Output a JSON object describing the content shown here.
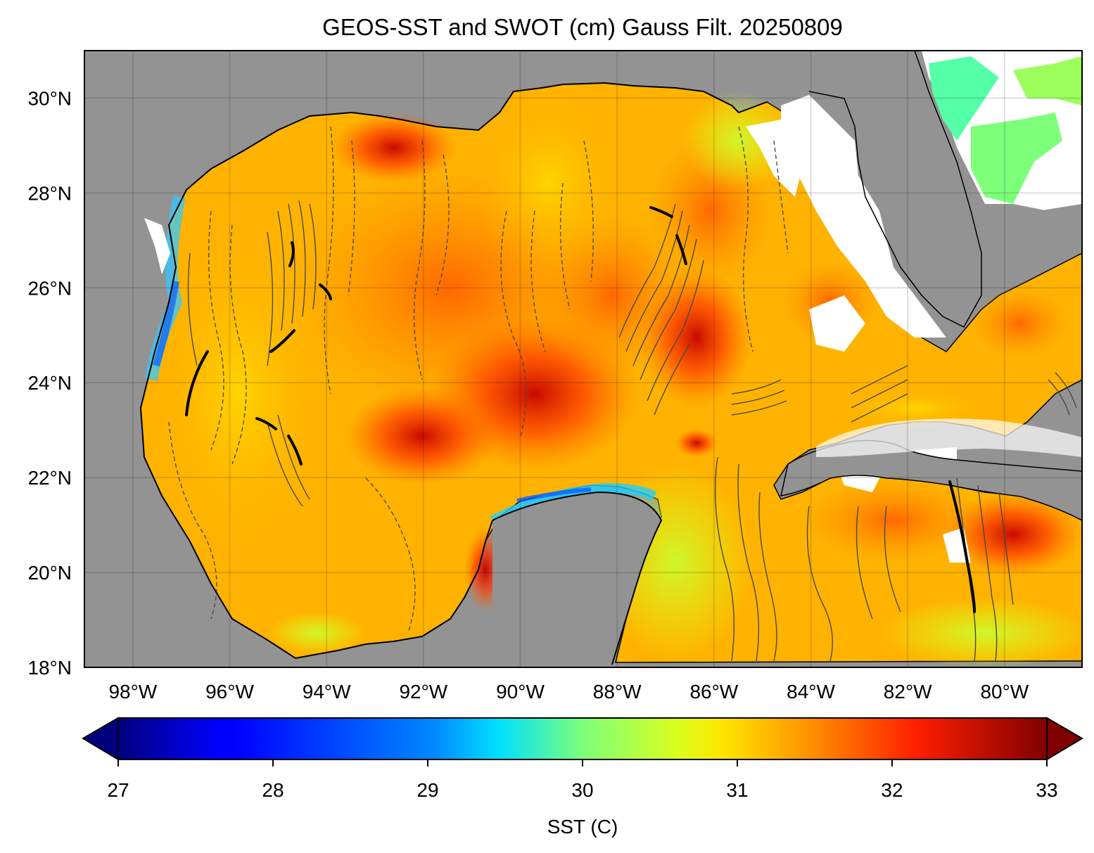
{
  "figure": {
    "title": "GEOS-SST  and SWOT (cm) Gauss Filt. 20250809"
  },
  "map": {
    "lon_range": [
      -99,
      -78.4
    ],
    "lat_range": [
      18,
      31
    ],
    "lat_ticks": [
      {
        "value": 30,
        "label": "30°N"
      },
      {
        "value": 28,
        "label": "28°N"
      },
      {
        "value": 26,
        "label": "26°N"
      },
      {
        "value": 24,
        "label": "24°N"
      },
      {
        "value": 22,
        "label": "22°N"
      },
      {
        "value": 20,
        "label": "20°N"
      },
      {
        "value": 18,
        "label": "18°N"
      }
    ],
    "lon_ticks": [
      {
        "value": -98,
        "label": "98°W"
      },
      {
        "value": -96,
        "label": "96°W"
      },
      {
        "value": -94,
        "label": "94°W"
      },
      {
        "value": -92,
        "label": "92°W"
      },
      {
        "value": -90,
        "label": "90°W"
      },
      {
        "value": -88,
        "label": "88°W"
      },
      {
        "value": -86,
        "label": "86°W"
      },
      {
        "value": -84,
        "label": "84°W"
      },
      {
        "value": -82,
        "label": "82°W"
      },
      {
        "value": -80,
        "label": "80°W"
      }
    ],
    "gridlines": true,
    "land_color": "#939393",
    "colormap": "jet"
  },
  "colorbar": {
    "label": "SST (C)",
    "min": 27,
    "max": 33,
    "ticks": [
      {
        "value": 27,
        "label": "27"
      },
      {
        "value": 28,
        "label": "28"
      },
      {
        "value": 29,
        "label": "29"
      },
      {
        "value": 30,
        "label": "30"
      },
      {
        "value": 31,
        "label": "31"
      },
      {
        "value": 32,
        "label": "32"
      },
      {
        "value": 33,
        "label": "33"
      }
    ],
    "extend": "both"
  }
}
